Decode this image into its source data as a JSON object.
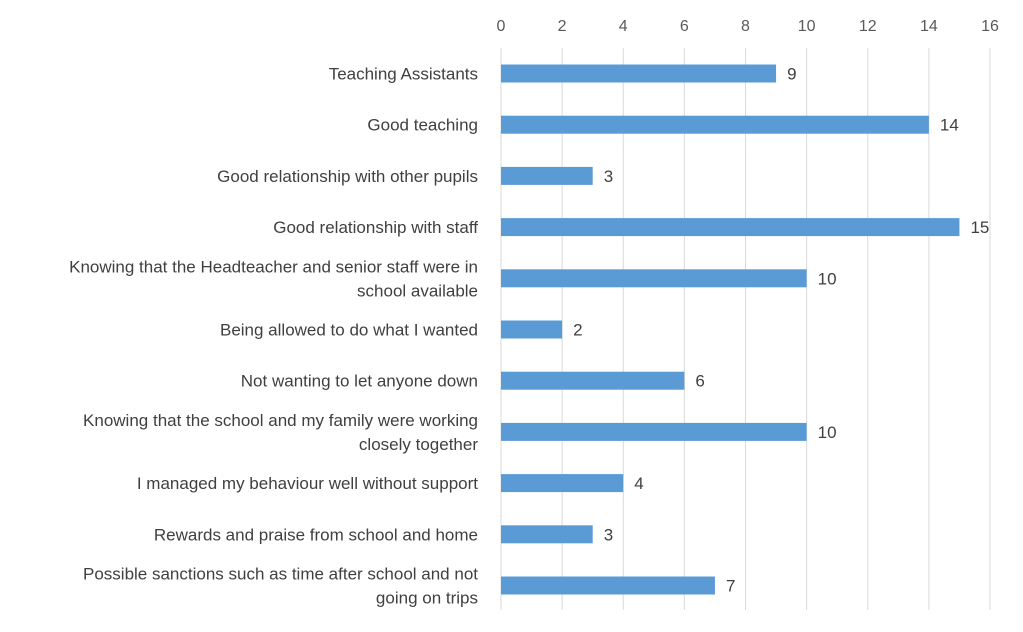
{
  "chart_data": {
    "type": "bar",
    "orientation": "horizontal",
    "axis_position": "top",
    "grid": true,
    "legend": "none",
    "bar_color": "#5b9bd5",
    "xlim": [
      0,
      16
    ],
    "x_ticks": [
      0,
      2,
      4,
      6,
      8,
      10,
      12,
      14,
      16
    ],
    "categories": [
      [
        "Teaching Assistants"
      ],
      [
        "Good teaching"
      ],
      [
        "Good relationship with other pupils"
      ],
      [
        "Good relationship with staff"
      ],
      [
        "Knowing that the Headteacher and senior staff were in",
        "school available"
      ],
      [
        "Being allowed to do what I wanted"
      ],
      [
        "Not wanting to let anyone down"
      ],
      [
        "Knowing that the school and my family were working",
        "closely together"
      ],
      [
        "I managed my behaviour well without support"
      ],
      [
        "Rewards and praise from school and home"
      ],
      [
        "Possible sanctions such as time after school and not",
        "going on trips"
      ]
    ],
    "values": [
      9,
      14,
      3,
      15,
      10,
      2,
      6,
      10,
      4,
      3,
      7
    ],
    "data_labels": [
      "9",
      "14",
      "3",
      "15",
      "10",
      "2",
      "6",
      "10",
      "4",
      "3",
      "7"
    ]
  }
}
